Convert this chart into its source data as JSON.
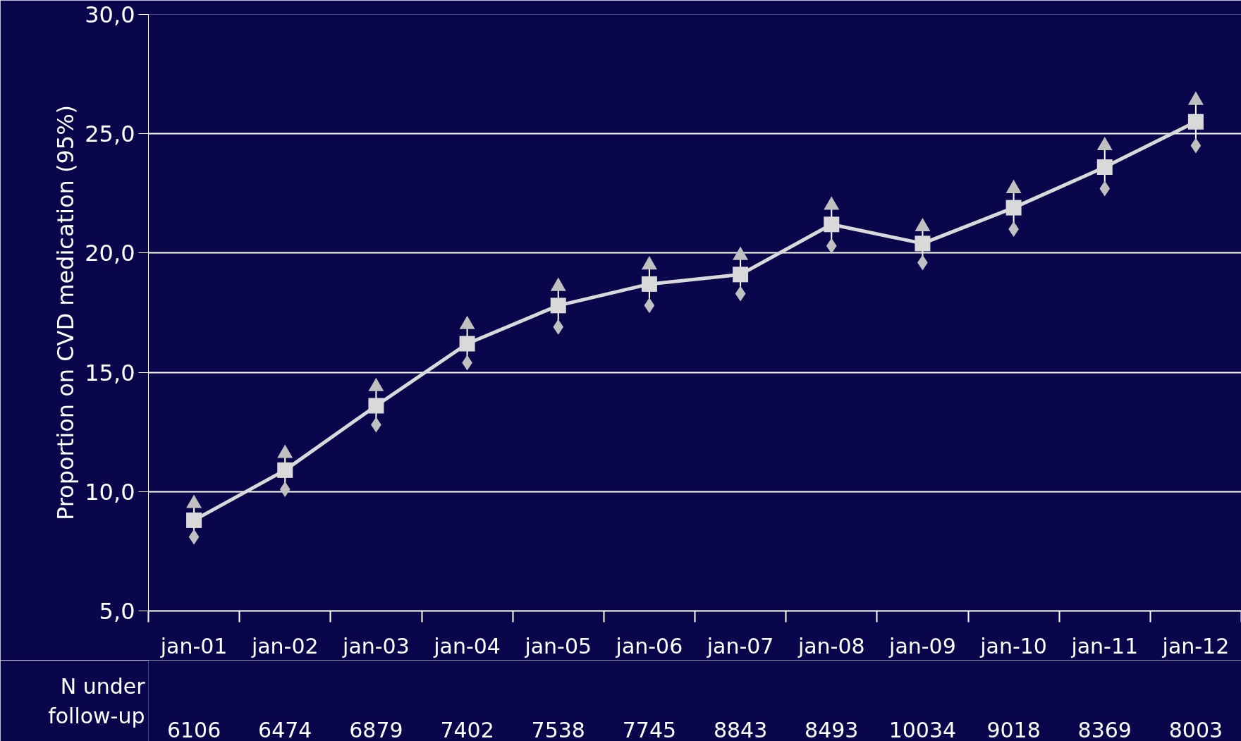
{
  "chart_data": {
    "type": "line",
    "ylabel": "Proportion on CVD medication (95%)",
    "categories": [
      "jan-01",
      "jan-02",
      "jan-03",
      "jan-04",
      "jan-05",
      "jan-06",
      "jan-07",
      "jan-08",
      "jan-09",
      "jan-10",
      "jan-11",
      "jan-12"
    ],
    "series": [
      {
        "color": "#d9d9d9",
        "values": [
          8.8,
          10.9,
          13.6,
          16.2,
          17.8,
          18.7,
          19.1,
          21.2,
          20.4,
          21.9,
          23.6,
          25.5
        ],
        "marker": "square"
      },
      {
        "type": "scatter",
        "marker": "triangle",
        "color": "#c0c0c0",
        "values": [
          9.5,
          11.6,
          14.4,
          17.0,
          18.6,
          19.5,
          19.9,
          22.0,
          21.1,
          22.7,
          24.5,
          26.4
        ]
      },
      {
        "type": "scatter",
        "marker": "diamond",
        "color": "#c0c0c0",
        "values": [
          8.1,
          10.1,
          12.8,
          15.4,
          16.9,
          17.8,
          18.3,
          20.3,
          19.6,
          21.0,
          22.7,
          24.5
        ]
      }
    ],
    "ylim": [
      5,
      30
    ],
    "yticks": [
      {
        "value": 5,
        "label": "5,0"
      },
      {
        "value": 10,
        "label": "10,0"
      },
      {
        "value": 15,
        "label": "15,0"
      },
      {
        "value": 20,
        "label": "20,0"
      },
      {
        "value": 25,
        "label": "25,0"
      },
      {
        "value": 30,
        "label": "30,0"
      }
    ],
    "grid": "y",
    "line_style": "solid",
    "annotations": [
      "N under\nfollow-up",
      "6106",
      "6474",
      "6879",
      "7402",
      "7538",
      "7745",
      "8843",
      "8493",
      "10034",
      "9018",
      "8369",
      "8003"
    ]
  }
}
